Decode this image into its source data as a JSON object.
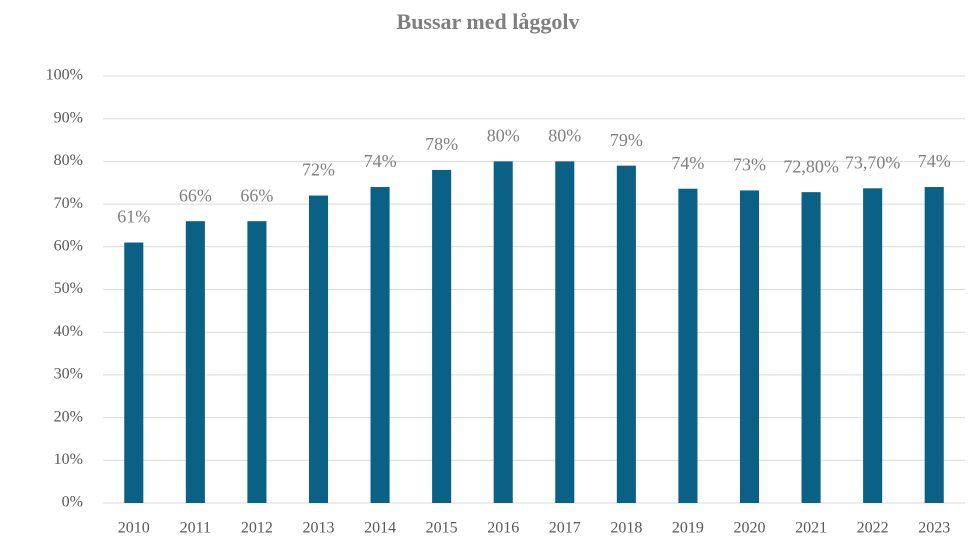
{
  "chart_data": {
    "type": "bar",
    "title": "Bussar med låggolv",
    "categories": [
      "2010",
      "2011",
      "2012",
      "2013",
      "2014",
      "2015",
      "2016",
      "2017",
      "2018",
      "2019",
      "2020",
      "2021",
      "2022",
      "2023"
    ],
    "values": [
      61,
      66,
      66,
      72,
      74,
      78,
      80,
      80,
      79,
      73.6,
      73.2,
      72.8,
      73.7,
      74
    ],
    "value_labels": [
      "61%",
      "66%",
      "66%",
      "72%",
      "74%",
      "78%",
      "80%",
      "80%",
      "79%",
      "74%",
      "73%",
      "72,80%",
      "73,70%",
      "74%"
    ],
    "color": "#0b6185",
    "ylim": [
      0,
      100
    ],
    "yticks": [
      {
        "value": 0,
        "label": "0%"
      },
      {
        "value": 10,
        "label": "10%"
      },
      {
        "value": 20,
        "label": "20%"
      },
      {
        "value": 30,
        "label": "30%"
      },
      {
        "value": 40,
        "label": "40%"
      },
      {
        "value": 50,
        "label": "50%"
      },
      {
        "value": 60,
        "label": "60%"
      },
      {
        "value": 70,
        "label": "70%"
      },
      {
        "value": 80,
        "label": "80%"
      },
      {
        "value": 90,
        "label": "90%"
      },
      {
        "value": 100,
        "label": "100%"
      }
    ],
    "grid": true
  }
}
